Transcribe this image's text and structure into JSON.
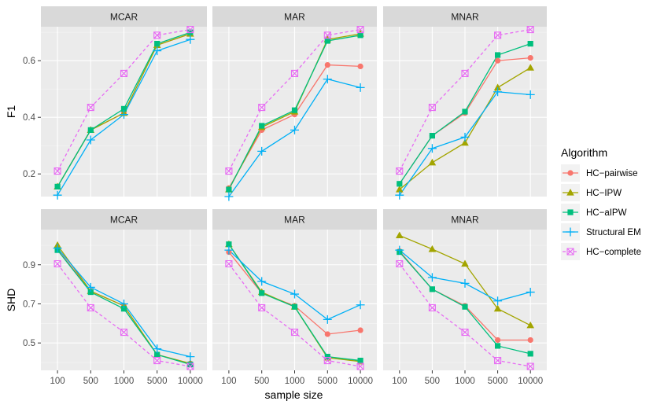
{
  "chart_data": {
    "type": "line",
    "xlabel": "sample size",
    "x": [
      "100",
      "500",
      "1000",
      "5000",
      "10000"
    ],
    "columns": [
      "MCAR",
      "MAR",
      "MNAR"
    ],
    "legend": {
      "title": "Algorithm",
      "position": "right",
      "entries": [
        {
          "name": "HC−pairwise",
          "color": "#F8766D",
          "marker": "circle",
          "dashed": false
        },
        {
          "name": "HC−IPW",
          "color": "#A3A500",
          "marker": "triangle",
          "dashed": false
        },
        {
          "name": "HC−aIPW",
          "color": "#00BF7D",
          "marker": "square",
          "dashed": false
        },
        {
          "name": "Structural EM",
          "color": "#00B0F6",
          "marker": "plus",
          "dashed": false
        },
        {
          "name": "HC−complete",
          "color": "#E76BF3",
          "marker": "boxx",
          "dashed": true
        }
      ]
    },
    "rows": [
      {
        "ylabel": "F1",
        "ylim": [
          0.12,
          0.72
        ],
        "ticks": [
          0.2,
          0.4,
          0.6
        ],
        "tick_labels": [
          "0.2",
          "0.4",
          "0.6"
        ],
        "panels": [
          {
            "title": "MCAR",
            "series": [
              {
                "name": "HC−pairwise",
                "values": [
                  0.155,
                  0.355,
                  0.415,
                  0.655,
                  0.695
                ]
              },
              {
                "name": "HC−IPW",
                "values": [
                  0.155,
                  0.355,
                  0.415,
                  0.655,
                  0.695
                ]
              },
              {
                "name": "HC−aIPW",
                "values": [
                  0.155,
                  0.355,
                  0.43,
                  0.66,
                  0.7
                ]
              },
              {
                "name": "Structural EM",
                "values": [
                  0.125,
                  0.32,
                  0.41,
                  0.635,
                  0.675
                ]
              },
              {
                "name": "HC−complete",
                "values": [
                  0.21,
                  0.435,
                  0.555,
                  0.69,
                  0.71
                ]
              }
            ]
          },
          {
            "title": "MAR",
            "series": [
              {
                "name": "HC−pairwise",
                "values": [
                  0.15,
                  0.355,
                  0.41,
                  0.585,
                  0.58
                ]
              },
              {
                "name": "HC−IPW",
                "values": [
                  0.145,
                  0.365,
                  0.42,
                  0.675,
                  0.695
                ]
              },
              {
                "name": "HC−aIPW",
                "values": [
                  0.145,
                  0.37,
                  0.425,
                  0.67,
                  0.69
                ]
              },
              {
                "name": "Structural EM",
                "values": [
                  0.12,
                  0.28,
                  0.355,
                  0.535,
                  0.505
                ]
              },
              {
                "name": "HC−complete",
                "values": [
                  0.21,
                  0.435,
                  0.555,
                  0.69,
                  0.71
                ]
              }
            ]
          },
          {
            "title": "MNAR",
            "series": [
              {
                "name": "HC−pairwise",
                "values": [
                  0.165,
                  0.335,
                  0.415,
                  0.6,
                  0.61
                ]
              },
              {
                "name": "HC−IPW",
                "values": [
                  0.145,
                  0.24,
                  0.31,
                  0.505,
                  0.575
                ]
              },
              {
                "name": "HC−aIPW",
                "values": [
                  0.165,
                  0.335,
                  0.42,
                  0.62,
                  0.66
                ]
              },
              {
                "name": "Structural EM",
                "values": [
                  0.125,
                  0.29,
                  0.33,
                  0.49,
                  0.48
                ]
              },
              {
                "name": "HC−complete",
                "values": [
                  0.21,
                  0.435,
                  0.555,
                  0.69,
                  0.71
                ]
              }
            ]
          }
        ]
      },
      {
        "ylabel": "SHD",
        "ylim": [
          0.36,
          1.08
        ],
        "ticks": [
          0.5,
          0.7,
          0.9
        ],
        "tick_labels": [
          "0.5",
          "0.7",
          "0.9"
        ],
        "panels": [
          {
            "title": "MCAR",
            "series": [
              {
                "name": "HC−pairwise",
                "values": [
                  0.98,
                  0.765,
                  0.69,
                  0.44,
                  0.395
                ]
              },
              {
                "name": "HC−IPW",
                "values": [
                  1.0,
                  0.765,
                  0.69,
                  0.44,
                  0.395
                ]
              },
              {
                "name": "HC−aIPW",
                "values": [
                  0.975,
                  0.76,
                  0.675,
                  0.44,
                  0.39
                ]
              },
              {
                "name": "Structural EM",
                "values": [
                  0.985,
                  0.785,
                  0.7,
                  0.47,
                  0.43
                ]
              },
              {
                "name": "HC−complete",
                "values": [
                  0.905,
                  0.68,
                  0.555,
                  0.41,
                  0.38
                ]
              }
            ]
          },
          {
            "title": "MAR",
            "series": [
              {
                "name": "HC−pairwise",
                "values": [
                  0.965,
                  0.755,
                  0.69,
                  0.545,
                  0.565
                ]
              },
              {
                "name": "HC−IPW",
                "values": [
                  1.005,
                  0.76,
                  0.685,
                  0.425,
                  0.405
                ]
              },
              {
                "name": "HC−aIPW",
                "values": [
                  1.005,
                  0.755,
                  0.685,
                  0.43,
                  0.41
                ]
              },
              {
                "name": "Structural EM",
                "values": [
                  0.975,
                  0.815,
                  0.75,
                  0.62,
                  0.695
                ]
              },
              {
                "name": "HC−complete",
                "values": [
                  0.905,
                  0.68,
                  0.555,
                  0.41,
                  0.38
                ]
              }
            ]
          },
          {
            "title": "MNAR",
            "series": [
              {
                "name": "HC−pairwise",
                "values": [
                  0.97,
                  0.775,
                  0.69,
                  0.515,
                  0.515
                ]
              },
              {
                "name": "HC−IPW",
                "values": [
                  1.05,
                  0.98,
                  0.905,
                  0.675,
                  0.59
                ]
              },
              {
                "name": "HC−aIPW",
                "values": [
                  0.965,
                  0.775,
                  0.685,
                  0.485,
                  0.445
                ]
              },
              {
                "name": "Structural EM",
                "values": [
                  0.975,
                  0.835,
                  0.805,
                  0.715,
                  0.76
                ]
              },
              {
                "name": "HC−complete",
                "values": [
                  0.905,
                  0.68,
                  0.555,
                  0.41,
                  0.38
                ]
              }
            ]
          }
        ]
      }
    ]
  }
}
